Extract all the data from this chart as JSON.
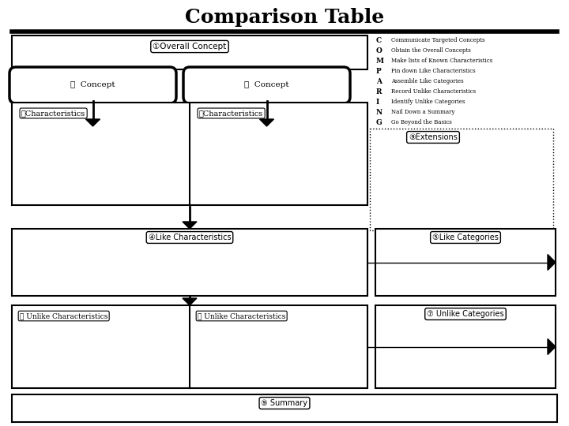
{
  "title": "Comparison Table",
  "title_fontsize": 18,
  "title_fontweight": "bold",
  "background_color": "#ffffff",
  "comparing_letters": [
    "C",
    "O",
    "M",
    "P",
    "A",
    "R",
    "I",
    "N",
    "G"
  ],
  "comparing_text": [
    "Communicate Targeted Concepts",
    "Obtain the Overall Concepts",
    "Make lists of Known Characteristics",
    "Pin down Like Characteristics",
    "Assemble Like Categories",
    "Record Unlike Characteristics",
    "Identify Unlike Categories",
    "Nail Down a Summary",
    "Go Beyond the Basics"
  ],
  "label_overall": "①Overall Concept",
  "label_concept1": "①  Concept",
  "label_concept2": "①  Concept",
  "label_char1": "③Characteristics",
  "label_char2": "③Characteristics",
  "label_like_char": "④Like Characteristics",
  "label_unlike_char1": "⑥ Unlike Characteristics",
  "label_unlike_char2": "⑦ Unlike Characteristics",
  "label_like_cat": "⑤Like Categories",
  "label_unlike_cat": "⑦ Unlike Categories",
  "label_extensions": "⑨Extensions",
  "label_summary": "⑨ Summary"
}
